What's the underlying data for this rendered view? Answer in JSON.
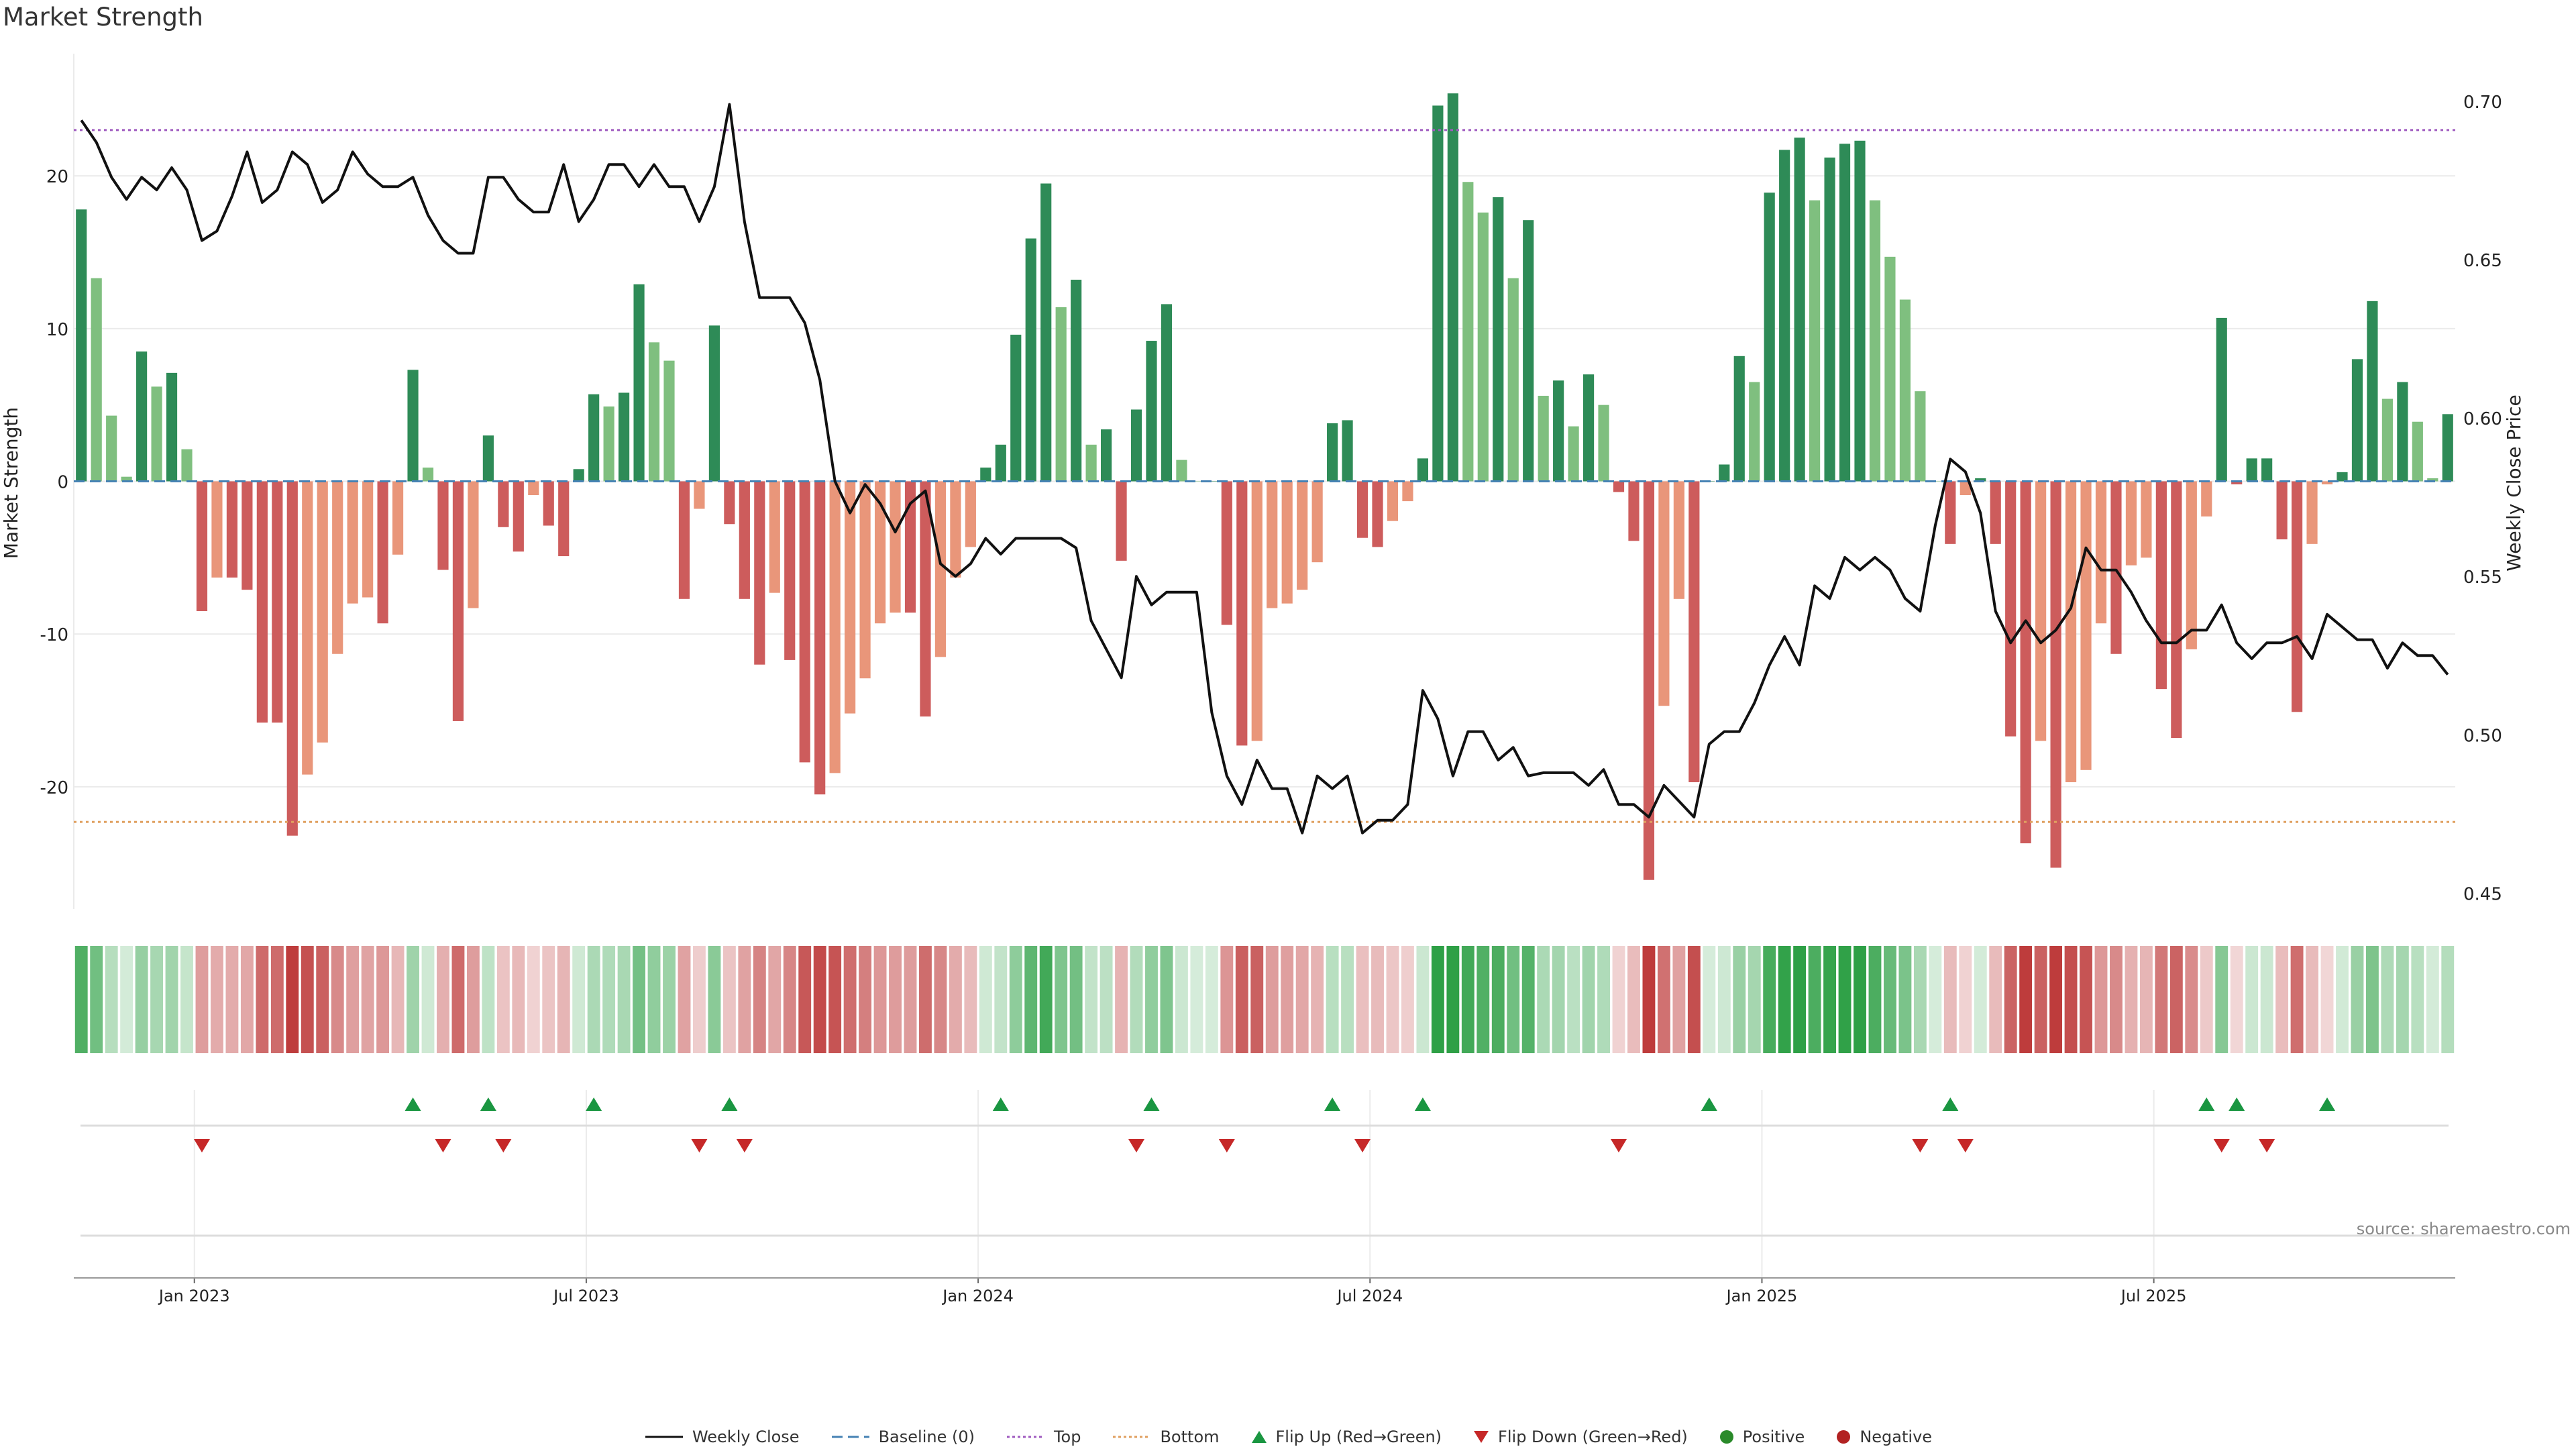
{
  "title": "Market Strength",
  "source": "source: sharemaestro.com",
  "colors": {
    "strong_pos": "#2e8b57",
    "weak_pos": "#7fbf7f",
    "strong_neg": "#cd5c5c",
    "weak_neg": "#e9967a",
    "line": "#111111",
    "top": "#a05cc0",
    "bottom": "#e0a060",
    "baseline": "#4682b4",
    "flip_up": "#1a9641",
    "flip_down": "#c62828"
  },
  "legend": {
    "weekly_close": "Weekly Close",
    "baseline": "Baseline (0)",
    "top": "Top",
    "bottom": "Bottom",
    "flip_up": "Flip Up (Red→Green)",
    "flip_down": "Flip Down (Green→Red)",
    "positive": "Positive",
    "negative": "Negative"
  },
  "chart_data": {
    "type": "bar",
    "ylabel": "Market Strength",
    "y2label": "Weekly Close Price",
    "ylim": [
      -28,
      28
    ],
    "y2lim": [
      0.445,
      0.715
    ],
    "yticks": [
      -20,
      -10,
      0,
      10,
      20
    ],
    "y2ticks": [
      0.45,
      0.5,
      0.55,
      0.6,
      0.65,
      0.7
    ],
    "y2tick_labels": [
      "0.45",
      "0.50",
      "0.55",
      "0.60",
      "0.65",
      "0.70"
    ],
    "top_level": 23,
    "bottom_level": -22.3,
    "xticks": [
      "Jan 2023",
      "Jul 2023",
      "Jan 2024",
      "Jul 2024",
      "Jan 2025",
      "Jul 2025"
    ],
    "strength": [
      17.8,
      13.3,
      4.3,
      0.3,
      8.5,
      6.2,
      7.1,
      2.1,
      -8.5,
      -6.3,
      -6.3,
      -7.1,
      -15.8,
      -15.8,
      -23.2,
      -19.2,
      -17.1,
      -11.3,
      -8.0,
      -7.6,
      -9.3,
      -4.8,
      7.3,
      0.9,
      -5.8,
      -15.7,
      -8.3,
      3.0,
      -3.0,
      -4.6,
      -0.9,
      -2.9,
      -4.9,
      0.8,
      5.7,
      4.9,
      5.8,
      12.9,
      9.1,
      7.9,
      -7.7,
      -1.8,
      10.2,
      -2.8,
      -7.7,
      -12.0,
      -7.3,
      -11.7,
      -18.4,
      -20.5,
      -19.1,
      -15.2,
      -12.9,
      -9.3,
      -8.6,
      -8.6,
      -15.4,
      -11.5,
      -6.3,
      -4.3,
      0.9,
      2.4,
      9.6,
      15.9,
      19.5,
      11.4,
      13.2,
      2.4,
      3.4,
      -5.2,
      4.7,
      9.2,
      11.6,
      1.4,
      0,
      0,
      -9.4,
      -17.3,
      -17.0,
      -8.3,
      -8.0,
      -7.1,
      -5.3,
      3.8,
      4.0,
      -3.7,
      -4.3,
      -2.6,
      -1.3,
      1.5,
      24.6,
      25.4,
      19.6,
      17.6,
      18.6,
      13.3,
      17.1,
      5.6,
      6.6,
      3.6,
      7.0,
      5.0,
      -0.7,
      -3.9,
      -26.1,
      -14.7,
      -7.7,
      -19.7,
      0,
      1.1,
      8.2,
      6.5,
      18.9,
      21.7,
      22.5,
      18.4,
      21.2,
      22.1,
      22.3,
      18.4,
      14.7,
      11.9,
      5.9,
      0,
      -4.1,
      -0.9,
      0.2,
      -4.1,
      -16.7,
      -23.7,
      -17.0,
      -25.3,
      -19.7,
      -18.9,
      -9.3,
      -11.3,
      -5.5,
      -5.0,
      -13.6,
      -16.8,
      -11.0,
      -2.3,
      10.7,
      -0.2,
      1.5,
      1.5,
      -3.8,
      -15.1,
      -4.1,
      -0.2,
      0.6,
      8.0,
      11.8,
      5.4,
      6.5,
      3.9,
      0.2,
      4.4
    ],
    "close": [
      0.694,
      0.687,
      0.676,
      0.669,
      0.676,
      0.672,
      0.679,
      0.672,
      0.656,
      0.659,
      0.67,
      0.684,
      0.668,
      0.672,
      0.684,
      0.68,
      0.668,
      0.672,
      0.684,
      0.677,
      0.673,
      0.673,
      0.676,
      0.664,
      0.656,
      0.652,
      0.652,
      0.676,
      0.676,
      0.669,
      0.665,
      0.665,
      0.68,
      0.662,
      0.669,
      0.68,
      0.68,
      0.673,
      0.68,
      0.673,
      0.673,
      0.662,
      0.673,
      0.699,
      0.662,
      0.638,
      0.638,
      0.638,
      0.63,
      0.612,
      0.58,
      0.57,
      0.579,
      0.573,
      0.564,
      0.573,
      0.577,
      0.554,
      0.55,
      0.554,
      0.562,
      0.557,
      0.562,
      0.562,
      0.562,
      0.562,
      0.559,
      0.536,
      0.527,
      0.518,
      0.55,
      0.541,
      0.545,
      0.545,
      0.545,
      0.507,
      0.487,
      0.478,
      0.492,
      0.483,
      0.483,
      0.469,
      0.487,
      0.483,
      0.487,
      0.469,
      0.473,
      0.473,
      0.478,
      0.514,
      0.505,
      0.487,
      0.501,
      0.501,
      0.492,
      0.496,
      0.487,
      0.488,
      0.488,
      0.488,
      0.484,
      0.489,
      0.478,
      0.478,
      0.474,
      0.484,
      0.479,
      0.474,
      0.497,
      0.501,
      0.501,
      0.51,
      0.522,
      0.531,
      0.522,
      0.547,
      0.543,
      0.556,
      0.552,
      0.556,
      0.552,
      0.543,
      0.539,
      0.566,
      0.587,
      0.583,
      0.57,
      0.539,
      0.529,
      0.536,
      0.529,
      0.533,
      0.54,
      0.559,
      0.552,
      0.552,
      0.545,
      0.536,
      0.529,
      0.529,
      0.533,
      0.533,
      0.541,
      0.529,
      0.524,
      0.529,
      0.529,
      0.531,
      0.524,
      0.538,
      0.534,
      0.53,
      0.53,
      0.521,
      0.529,
      0.525,
      0.525,
      0.519
    ],
    "flip_up": [
      22,
      27,
      34,
      43,
      61,
      71,
      83,
      89,
      108,
      124,
      141,
      143,
      149
    ],
    "flip_down": [
      8,
      24,
      28,
      41,
      44,
      70,
      76,
      85,
      102,
      122,
      125,
      142,
      145
    ]
  }
}
